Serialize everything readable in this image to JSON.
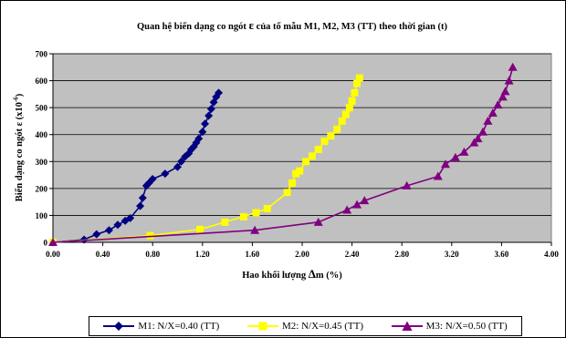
{
  "chart_data": {
    "type": "scatter",
    "title": "Quan hệ biến dạng co ngót ɛ của tổ mẫu M1, M2, M3 (TT) theo thời gian (t)",
    "xlabel": "Hao khối lượng Δm (%)",
    "ylabel": "Biến dạng co ngót ε (x10⁻⁶)",
    "xlim": [
      0,
      4.0
    ],
    "ylim": [
      0,
      700
    ],
    "x_ticks": [
      "0.00",
      "0.40",
      "0.80",
      "1.20",
      "1.60",
      "2.00",
      "2.40",
      "2.80",
      "3.20",
      "3.60",
      "4.00"
    ],
    "y_ticks": [
      "0",
      "100",
      "200",
      "300",
      "400",
      "500",
      "600",
      "700"
    ],
    "grid": "horizontal",
    "plot_background": "#c0c0c0",
    "legend_position": "bottom",
    "series": [
      {
        "name": "M1: N/X=0.40 (TT)",
        "color": "#000080",
        "marker": "diamond",
        "x": [
          0.0,
          0.25,
          0.35,
          0.45,
          0.52,
          0.58,
          0.62,
          0.7,
          0.72,
          0.75,
          0.77,
          0.8,
          0.9,
          1.0,
          1.03,
          1.06,
          1.09,
          1.11,
          1.13,
          1.15,
          1.17,
          1.2,
          1.22,
          1.25,
          1.27,
          1.29,
          1.31,
          1.33
        ],
        "y": [
          0,
          10,
          30,
          45,
          65,
          80,
          90,
          135,
          165,
          210,
          220,
          235,
          255,
          280,
          300,
          318,
          330,
          345,
          355,
          370,
          385,
          410,
          440,
          470,
          495,
          520,
          540,
          555
        ]
      },
      {
        "name": "M2: N/X=0.45 (TT)",
        "color": "#ffff00",
        "marker": "square",
        "x": [
          0.0,
          0.78,
          1.18,
          1.38,
          1.53,
          1.63,
          1.72,
          1.88,
          1.92,
          1.95,
          1.98,
          2.03,
          2.08,
          2.13,
          2.18,
          2.23,
          2.28,
          2.32,
          2.35,
          2.38,
          2.4,
          2.42,
          2.44,
          2.46
        ],
        "y": [
          0,
          25,
          48,
          75,
          95,
          110,
          125,
          185,
          220,
          255,
          265,
          300,
          320,
          345,
          375,
          395,
          420,
          450,
          475,
          500,
          525,
          555,
          590,
          610
        ]
      },
      {
        "name": "M3: N/X=0.50 (TT)",
        "color": "#800080",
        "marker": "triangle",
        "x": [
          0.0,
          1.62,
          2.13,
          2.36,
          2.44,
          2.5,
          2.84,
          3.09,
          3.15,
          3.23,
          3.3,
          3.38,
          3.41,
          3.45,
          3.49,
          3.53,
          3.57,
          3.61,
          3.63,
          3.66,
          3.69
        ],
        "y": [
          0,
          45,
          75,
          120,
          140,
          155,
          210,
          245,
          290,
          315,
          335,
          370,
          385,
          410,
          450,
          480,
          510,
          540,
          560,
          600,
          650
        ]
      }
    ]
  },
  "chart_title_parts": {
    "before": "Quan hệ biến dạng co ngót ",
    "epsilon": "ɛ",
    "after": " của tổ mẫu M1, M2, M3 (TT) theo thời gian (t)"
  },
  "xlabel_parts": {
    "before": "Hao khối lượng ",
    "delta": "Δ",
    "after": "m (%)"
  },
  "ylabel_parts": {
    "before": "Biến dạng co ngót ε (x10",
    "exp": "-6",
    "after": ")"
  }
}
